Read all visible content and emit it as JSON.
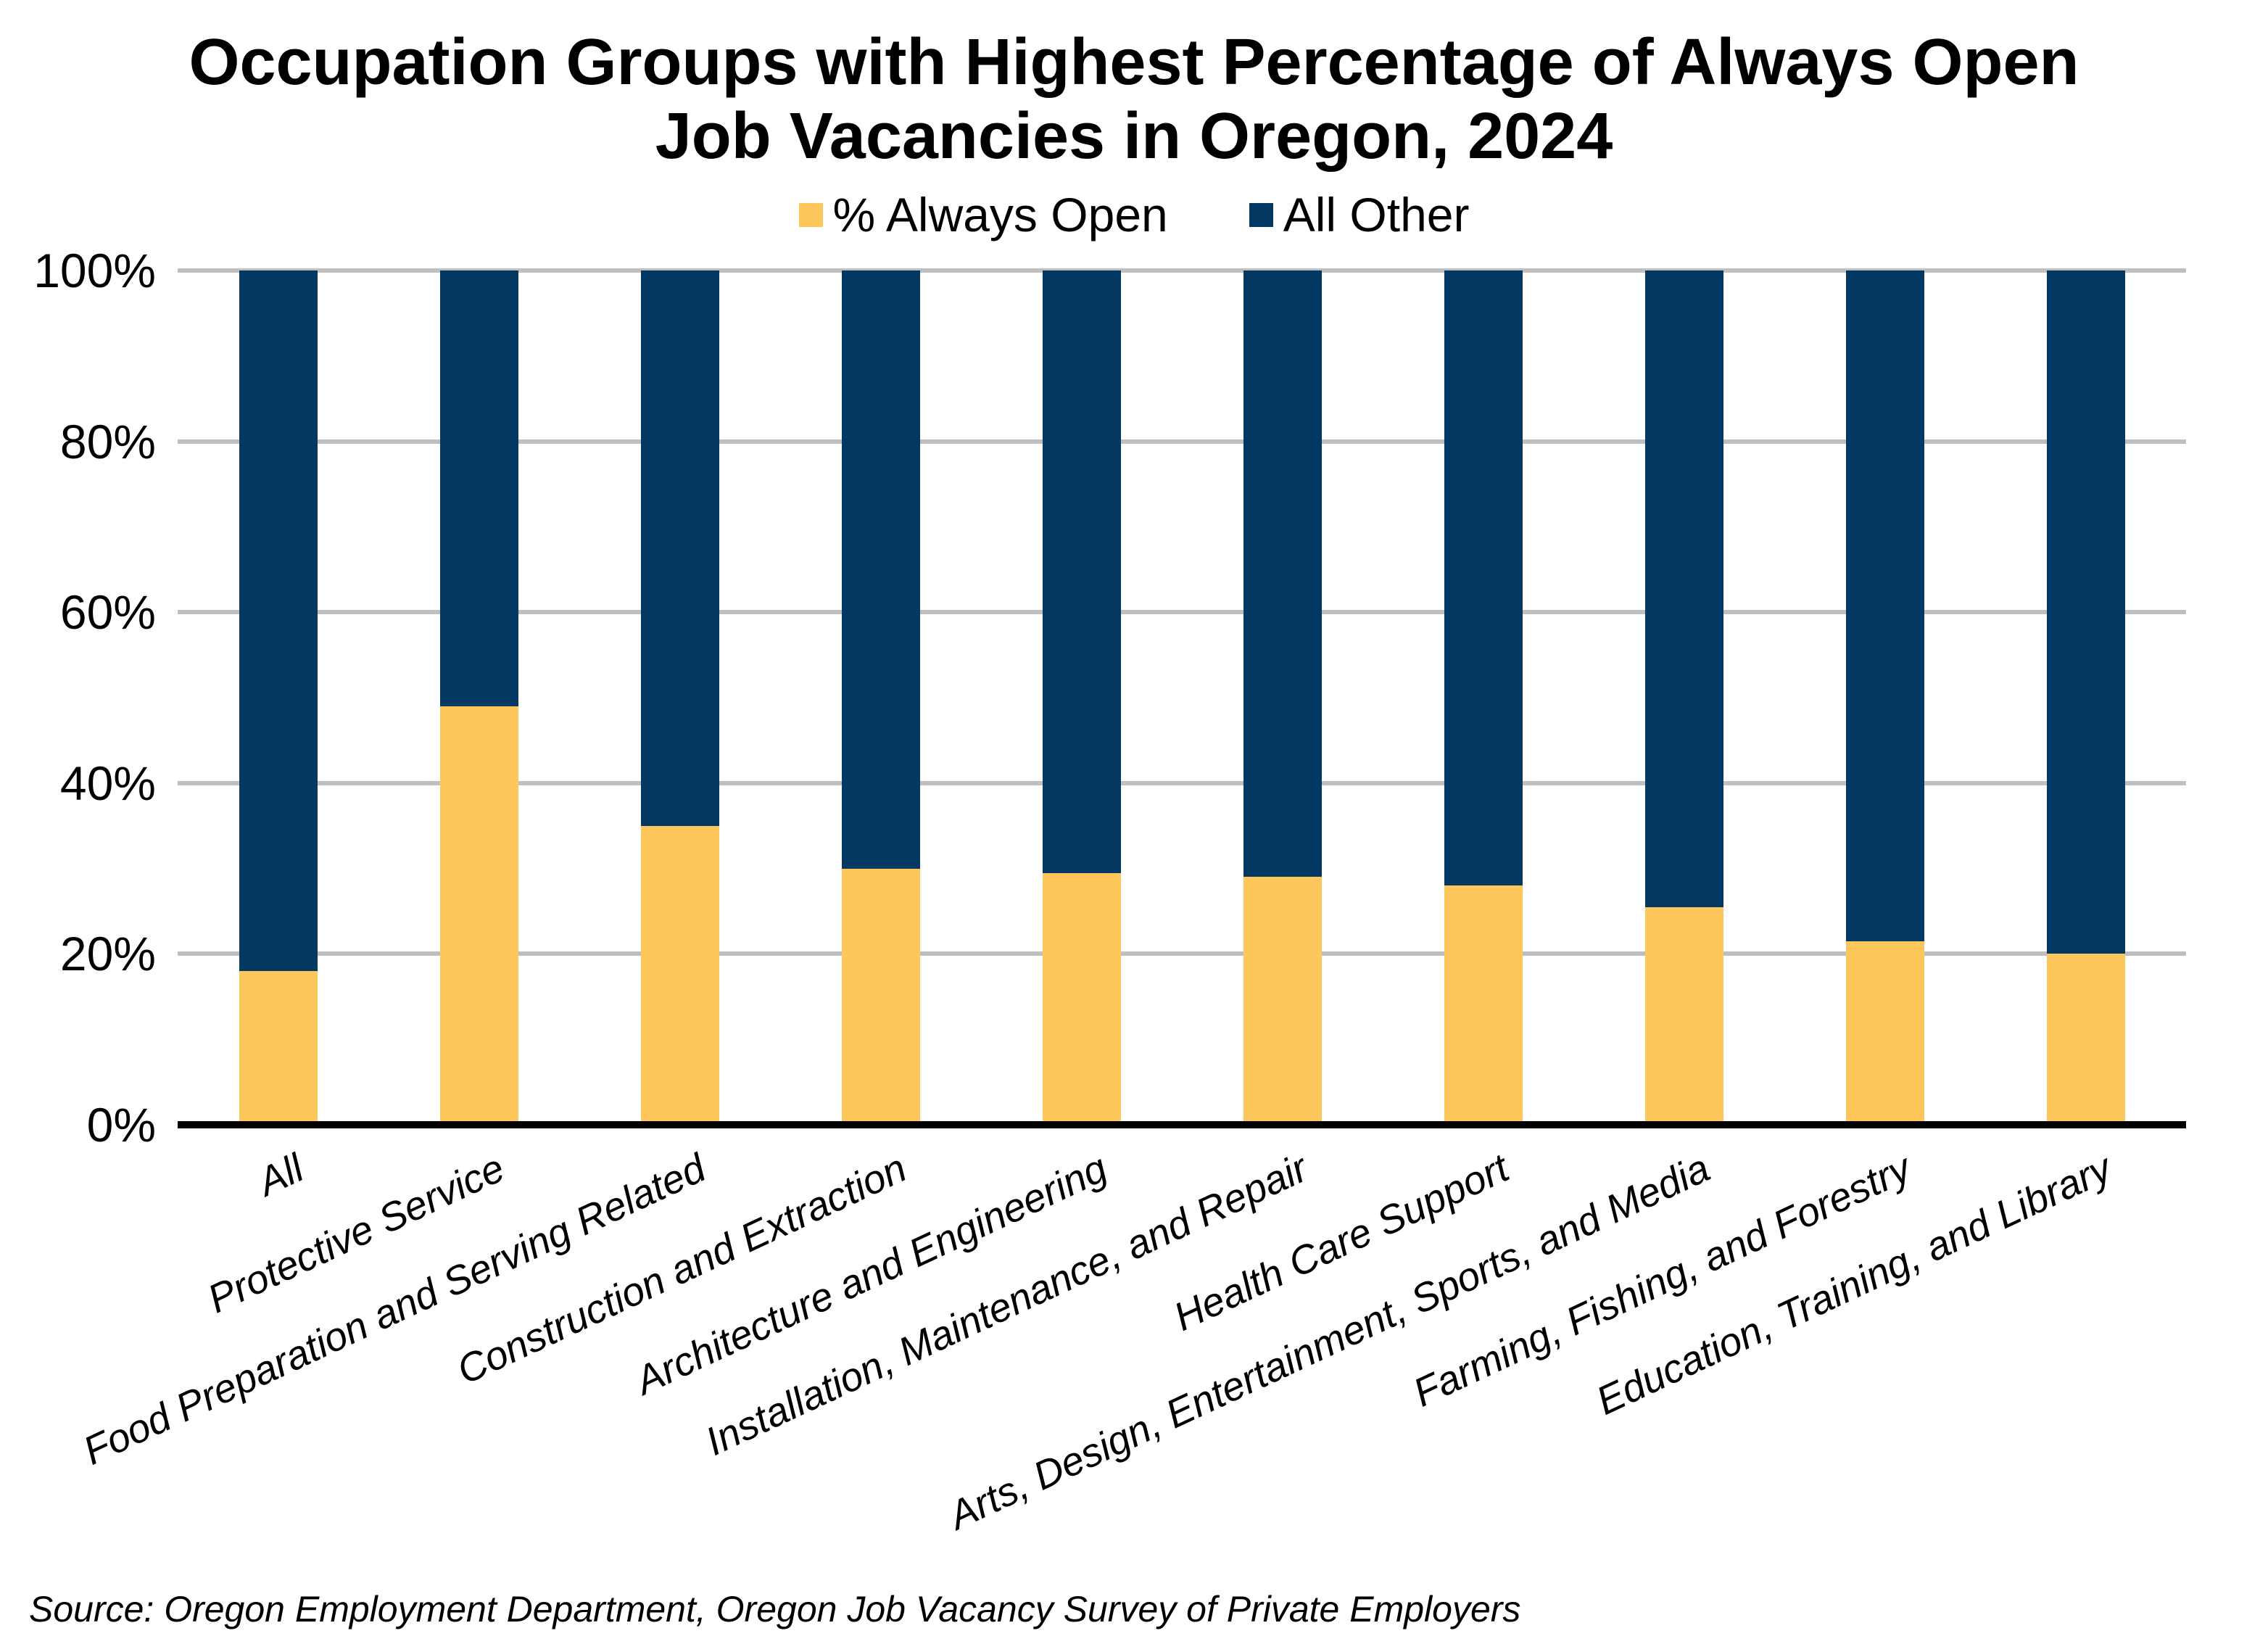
{
  "chart": {
    "title_lines": [
      "Occupation Groups with Highest Percentage of Always Open",
      "Job Vacancies in Oregon, 2024"
    ],
    "legend": [
      {
        "label": "% Always Open",
        "color": "#FDC75C"
      },
      {
        "label": "All Other",
        "color": "#033863"
      }
    ],
    "y_axis_labels": [
      "0%",
      "20%",
      "40%",
      "60%",
      "80%",
      "100%"
    ],
    "source": "Source: Oregon Employment Department, Oregon Job Vacancy Survey of Private Employers",
    "colors": {
      "always_open": "#FDC75C",
      "all_other": "#033863",
      "gridline": "#BFBFBF",
      "axis": "#000000",
      "background": "#FFFFFF"
    }
  },
  "chart_data": {
    "type": "bar",
    "stacked": true,
    "title": "Occupation Groups with Highest Percentage of Always Open Job Vacancies in Oregon, 2024",
    "categories": [
      "All",
      "Protective Service",
      "Food Preparation and Serving Related",
      "Construction and Extraction",
      "Architecture and Engineering",
      "Installation, Maintenance, and Repair",
      "Health Care Support",
      "Arts, Design, Entertainment, Sports, and Media",
      "Farming, Fishing, and Forestry",
      "Education, Training, and Library"
    ],
    "series": [
      {
        "name": "% Always Open",
        "color": "#FDC75C",
        "values": [
          18,
          49,
          35,
          30,
          29.5,
          29,
          28,
          25.5,
          21.5,
          20
        ]
      },
      {
        "name": "All Other",
        "color": "#033863",
        "values": [
          82,
          51,
          65,
          70,
          70.5,
          71,
          72,
          74.5,
          78.5,
          80
        ]
      }
    ],
    "ylim": [
      0,
      100
    ],
    "y_tick_step": 20,
    "grid": true,
    "legend_position": "top-center",
    "x_label_rotation_deg": -25
  }
}
